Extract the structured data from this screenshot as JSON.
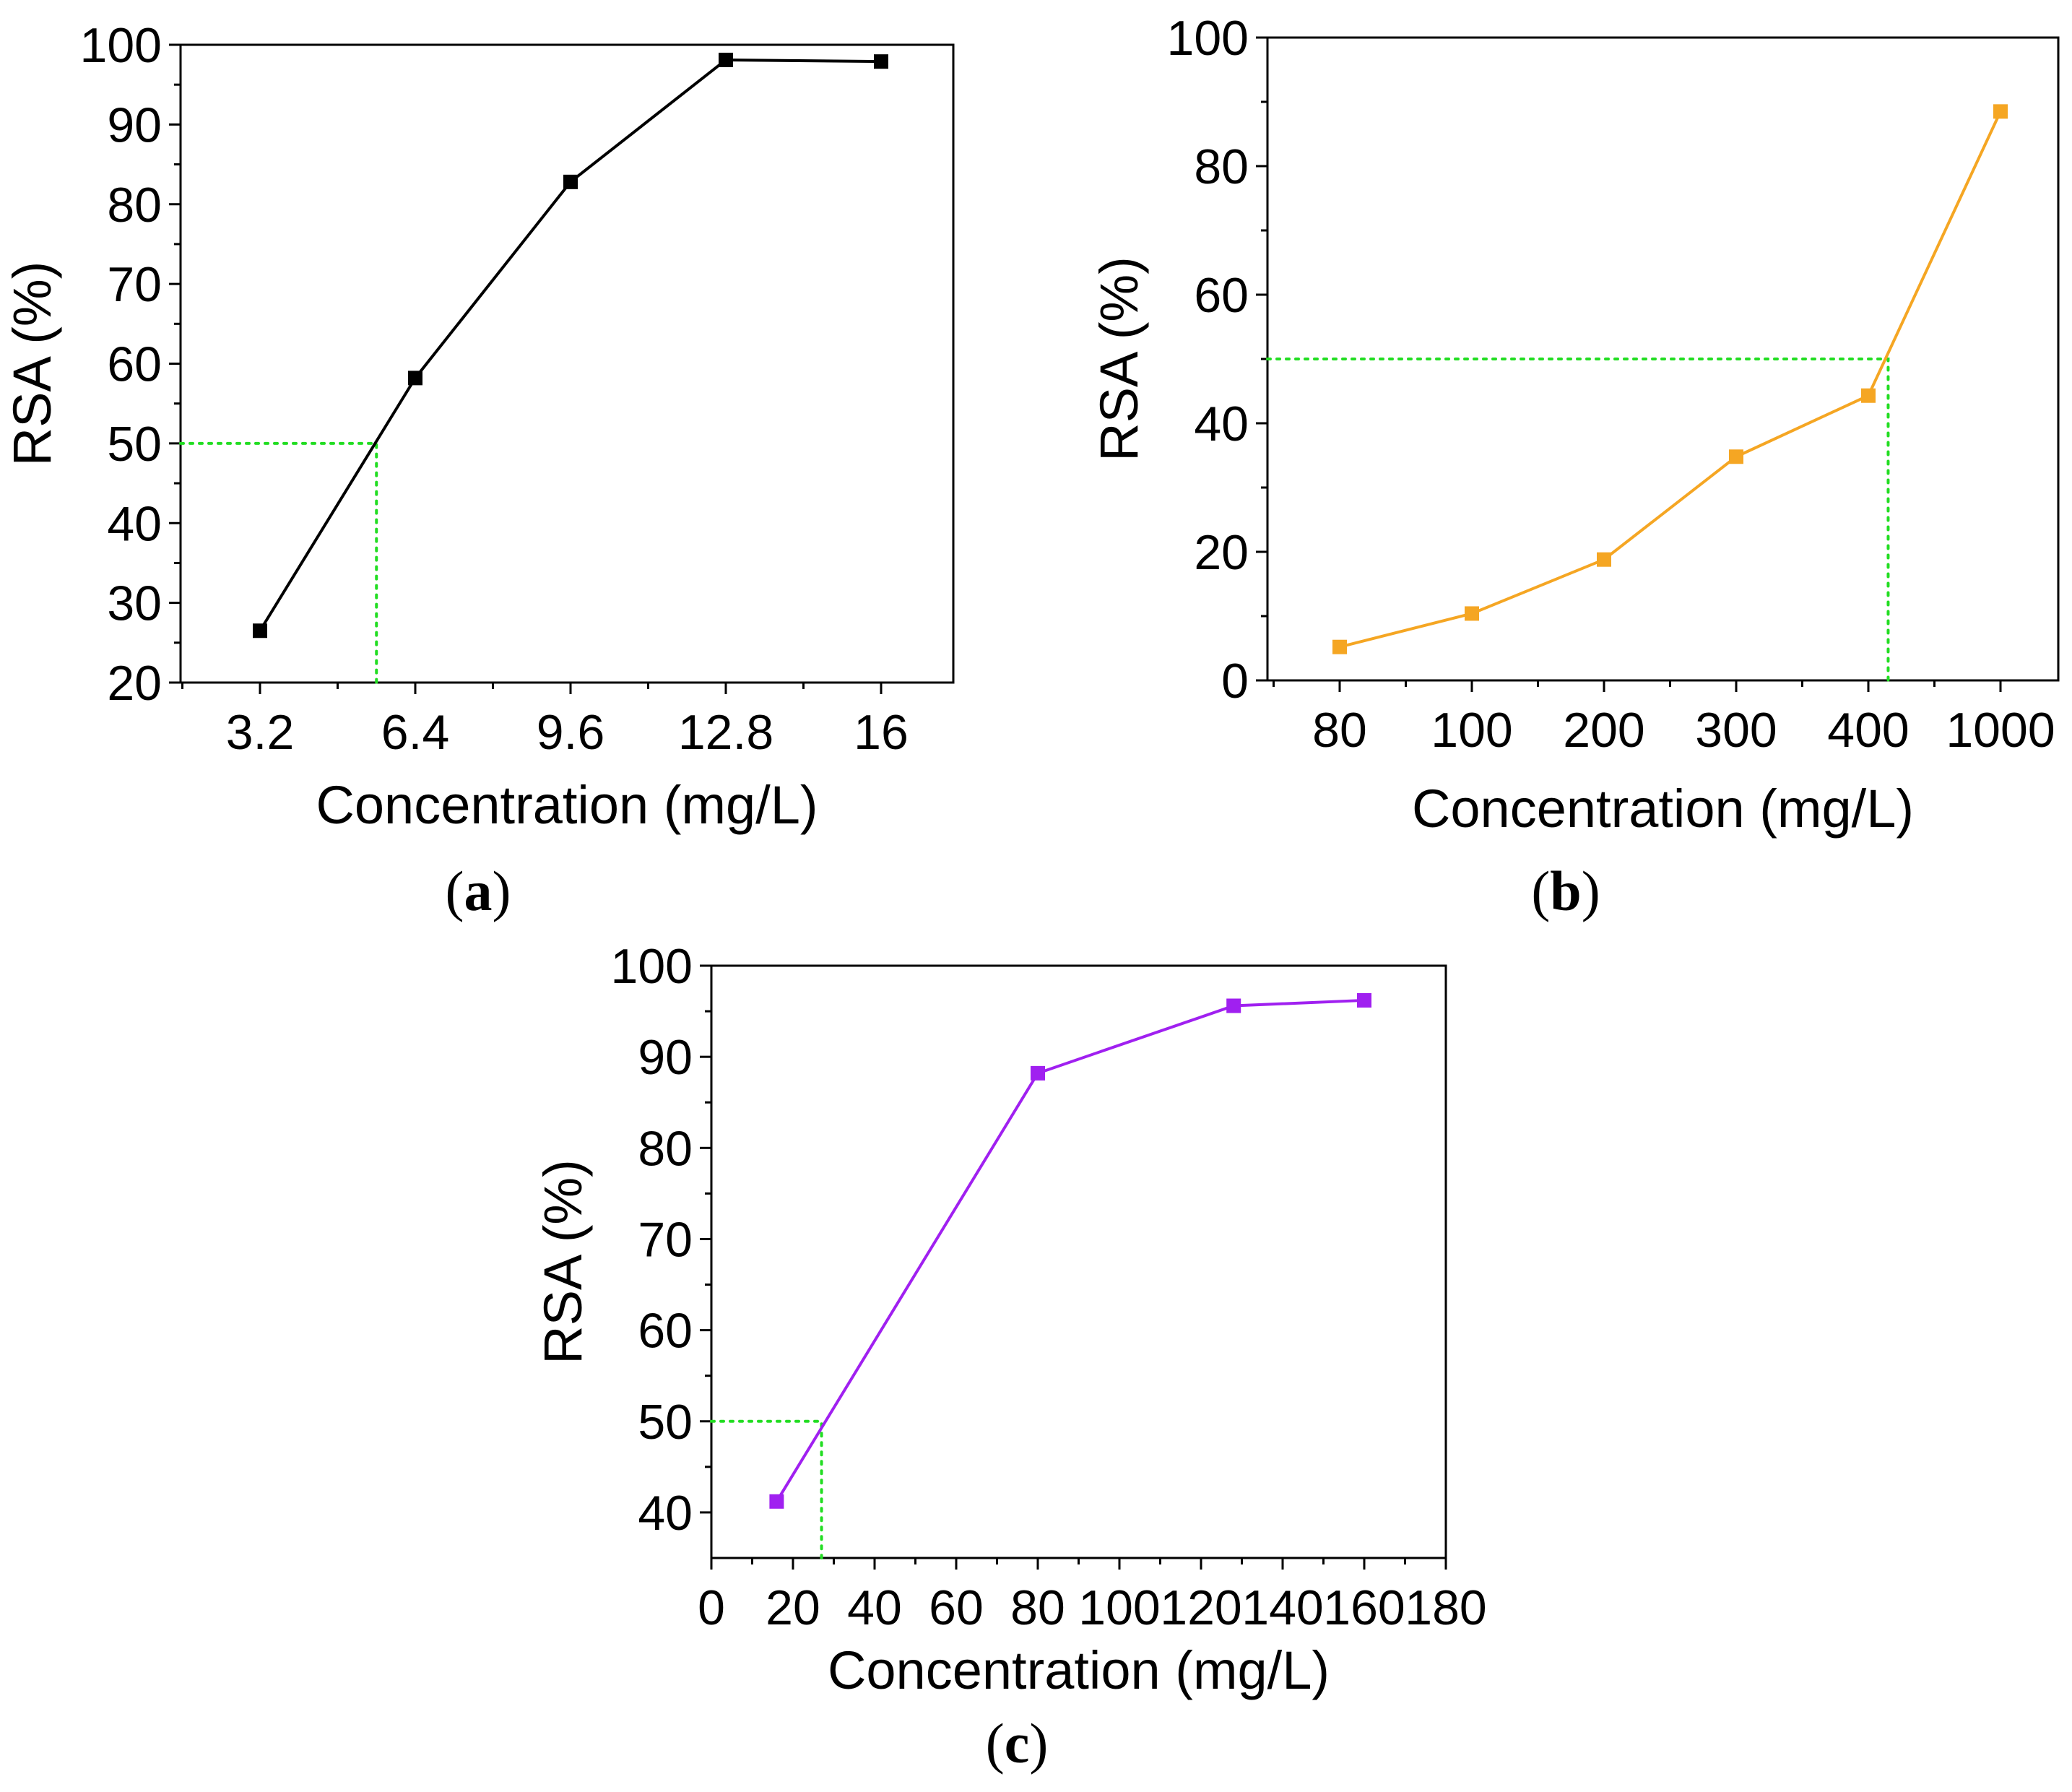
{
  "figure": {
    "chart_data": [
      {
        "type": "line",
        "panel": "a",
        "caption_open": "(",
        "caption_letter": "a",
        "caption_close": ")",
        "title": "",
        "xlabel": "Concentration (mg/L)",
        "ylabel": "RSA (%)",
        "x_scale": "categorical",
        "categories": [
          "3.2",
          "6.4",
          "9.6",
          "12.8",
          "16"
        ],
        "values": [
          26.5,
          58.2,
          82.8,
          98.1,
          97.9
        ],
        "ylim": [
          20,
          100
        ],
        "yticks": [
          20,
          30,
          40,
          50,
          60,
          70,
          80,
          90,
          100
        ],
        "series_color": "#000000",
        "marker": "square",
        "grid": false,
        "ic50_guide": {
          "y": 50,
          "x_category_position": 1.75,
          "color": "#22dd22",
          "style": "dotted"
        }
      },
      {
        "type": "line",
        "panel": "b",
        "caption_open": "(",
        "caption_letter": "b",
        "caption_close": ")",
        "title": "",
        "xlabel": "Concentration (mg/L)",
        "ylabel": "RSA (%)",
        "x_scale": "categorical",
        "categories": [
          "80",
          "100",
          "200",
          "300",
          "400",
          "1000"
        ],
        "values": [
          5.2,
          10.4,
          18.8,
          34.8,
          44.3,
          88.5
        ],
        "ylim": [
          0,
          100
        ],
        "yticks": [
          0,
          20,
          40,
          60,
          80,
          100
        ],
        "series_color": "#f5a623",
        "marker": "square",
        "grid": false,
        "ic50_guide": {
          "y": 50,
          "x_category_position": 5.15,
          "color": "#22dd22",
          "style": "dotted"
        }
      },
      {
        "type": "line",
        "panel": "c",
        "caption_open": "(",
        "caption_letter": "c",
        "caption_close": ")",
        "title": "",
        "xlabel": "Concentration (mg/L)",
        "ylabel": "RSA (%)",
        "x_scale": "linear",
        "x": [
          16,
          80,
          128,
          160
        ],
        "values": [
          41.2,
          88.2,
          95.6,
          96.2
        ],
        "xlim": [
          0,
          180
        ],
        "xticks": [
          0,
          20,
          40,
          60,
          80,
          100,
          120,
          140,
          160,
          180
        ],
        "ylim": [
          35,
          100
        ],
        "yticks": [
          40,
          50,
          60,
          70,
          80,
          90,
          100
        ],
        "series_color": "#a020f0",
        "marker": "square",
        "grid": false,
        "ic50_guide": {
          "y": 50,
          "x": 27,
          "color": "#22dd22",
          "style": "dotted"
        }
      }
    ]
  }
}
